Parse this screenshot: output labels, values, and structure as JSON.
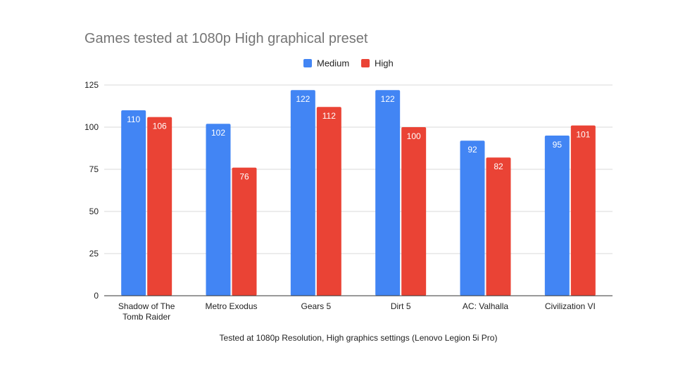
{
  "chart_data": {
    "type": "bar",
    "title": "Games tested at 1080p High graphical preset",
    "xlabel": "Tested at 1080p Resolution, High graphics settings (Lenovo Legion 5i Pro)",
    "ylabel": "",
    "categories": [
      [
        "Shadow of The",
        "Tomb Raider"
      ],
      [
        "Metro Exodus"
      ],
      [
        "Gears 5"
      ],
      [
        "Dirt 5"
      ],
      [
        "AC: Valhalla"
      ],
      [
        "Civilization VI"
      ]
    ],
    "series": [
      {
        "name": "Medium",
        "color": "#4285f4",
        "values": [
          110,
          102,
          122,
          122,
          92,
          95
        ]
      },
      {
        "name": "High",
        "color": "#ea4335",
        "values": [
          106,
          76,
          112,
          100,
          82,
          101
        ]
      }
    ],
    "ylim": [
      0,
      125
    ],
    "yticks": [
      0,
      25,
      50,
      75,
      100,
      125
    ],
    "grid": true,
    "legend": "top-center",
    "data_labels": true
  }
}
